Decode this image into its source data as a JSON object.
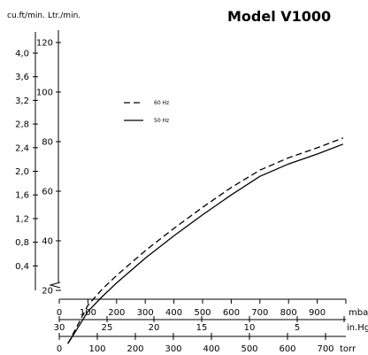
{
  "chart_data": {
    "type": "line",
    "title": "Model V1000",
    "y_units": {
      "left": "cu.ft/min.",
      "right": "Ltr./min."
    },
    "y_left": {
      "ticks": [
        "4,0",
        "3,6",
        "3,2",
        "2,8",
        "2,4",
        "2,0",
        "1,6",
        "1,2",
        "0,8",
        "0,4"
      ]
    },
    "y_right": {
      "ticks": [
        "120",
        "100",
        "80",
        "60",
        "40",
        "20"
      ],
      "ylim": [
        -4,
        128
      ]
    },
    "x_scales": [
      {
        "unit": "mbar",
        "ticks": [
          "0",
          "100",
          "200",
          "300",
          "400",
          "500",
          "600",
          "700",
          "800",
          "900"
        ]
      },
      {
        "unit": "in.Hg",
        "ticks": [
          "30",
          "25",
          "20",
          "15",
          "10",
          "5"
        ]
      },
      {
        "unit": "torr",
        "ticks": [
          "0",
          "100",
          "200",
          "300",
          "400",
          "500",
          "600",
          "700"
        ]
      }
    ],
    "xlim": [
      0,
      1000
    ],
    "series": [
      {
        "name": "60 Hz",
        "style": "dashed",
        "x": [
          30,
          60,
          100,
          150,
          200,
          300,
          400,
          500,
          600,
          700,
          800,
          900,
          990
        ],
        "y": [
          -1.5,
          5,
          14,
          20.5,
          26,
          36,
          45,
          53.5,
          61.5,
          68.5,
          73.5,
          77.5,
          81.5
        ]
      },
      {
        "name": "50 Hz",
        "style": "solid",
        "x": [
          30,
          60,
          100,
          150,
          200,
          300,
          400,
          500,
          600,
          700,
          800,
          900,
          990
        ],
        "y": [
          -1.5,
          4,
          11.5,
          17.5,
          23,
          33,
          42,
          50.5,
          58.5,
          66,
          71,
          75,
          79
        ]
      }
    ]
  }
}
